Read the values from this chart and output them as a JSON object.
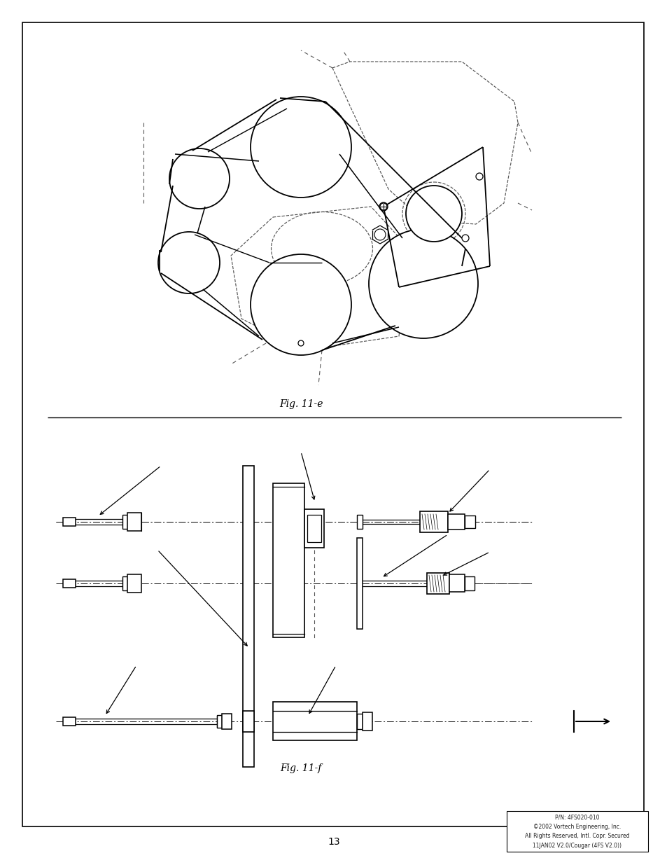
{
  "page_bg": "#ffffff",
  "border_color": "#000000",
  "page_number": "13",
  "fig_e_label": "Fig. 11-e",
  "fig_f_label": "Fig. 11-f",
  "copyright_lines": [
    "P/N: 4FS020-010",
    "©2002 Vortech Engineering, Inc.",
    "All Rights Reserved, Intl. Copr. Secured",
    "11JAN02 V2.0/Cougar (4FS V2.0))"
  ],
  "line_color": "#000000",
  "dashed_color": "#555555"
}
